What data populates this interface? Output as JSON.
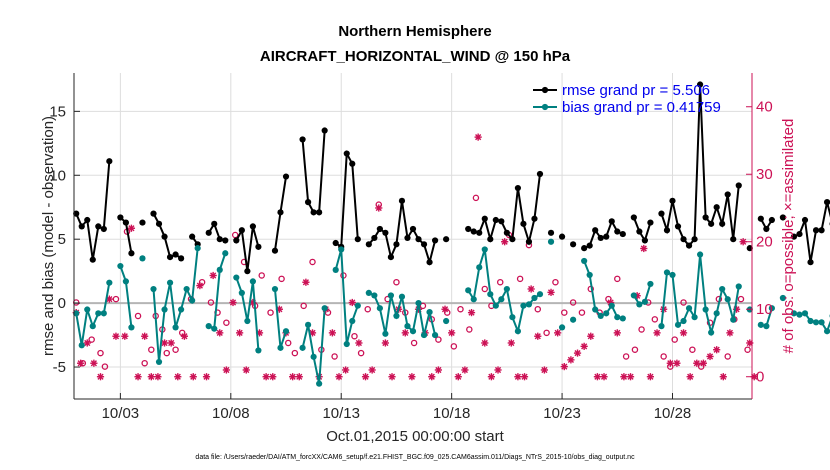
{
  "chart_data": {
    "type": "line",
    "title": "Northern Hemisphere",
    "subtitle": "AIRCRAFT_HORIZONTAL_WIND @ 150 hPa",
    "xlabel": "Oct.01,2015 00:00:00 start",
    "ylabel": "rmse and bias (model - observation)",
    "y2label": "# of obs: o=possible; ×=assimilated",
    "footnote": "data file: /Users/raeder/DAI/ATM_forcXX/CAM6_setup/f.e21.FHIST_BGC.f09_025.CAM6assim.011/Diags_NTrS_2015-10/obs_diag_output.nc",
    "xlim": [
      0.9,
      31.6
    ],
    "ylim": [
      -7.5,
      18
    ],
    "y2lim": [
      -3.3,
      45
    ],
    "x_ticks": [
      3,
      8,
      13,
      18,
      23,
      28
    ],
    "x_tick_labels": [
      "10/03",
      "10/08",
      "10/13",
      "10/18",
      "10/23",
      "10/28"
    ],
    "y_ticks": [
      -5,
      0,
      5,
      10,
      15
    ],
    "y_tick_labels": [
      "-5",
      "0",
      "5",
      "10",
      "15"
    ],
    "y2_ticks": [
      0,
      10,
      20,
      30,
      40
    ],
    "y2_tick_labels": [
      "0",
      "10",
      "20",
      "30",
      "40"
    ],
    "legend_position": "top-right",
    "series": [
      {
        "name": "rmse grand pr = 5.506",
        "color": "#000000",
        "values": [
          7.0,
          6.0,
          6.5,
          3.4,
          6.0,
          5.8,
          11.1,
          null,
          6.7,
          6.3,
          3.9,
          null,
          6.3,
          null,
          7.0,
          6.2,
          5.2,
          3.6,
          3.8,
          3.5,
          null,
          5.2,
          4.6,
          null,
          5.5,
          6.2,
          5.0,
          4.9,
          null,
          4.9,
          5.7,
          2.5,
          6.0,
          4.4,
          null,
          null,
          4.1,
          7.1,
          9.9,
          null,
          null,
          12.8,
          7.9,
          7.1,
          7.1,
          13.5,
          null,
          4.7,
          4.4,
          11.7,
          10.9,
          5.0,
          null,
          4.6,
          5.1,
          5.8,
          5.5,
          3.6,
          4.6,
          8.0,
          5.1,
          5.8,
          5.0,
          4.6,
          3.2,
          4.9,
          null,
          5.0,
          null,
          null,
          null,
          5.8,
          5.6,
          5.5,
          6.6,
          5.0,
          6.5,
          6.4,
          5.5,
          5.0,
          9.0,
          6.2,
          4.8,
          6.6,
          10.1,
          null,
          5.5,
          null,
          5.2,
          null,
          4.6,
          null,
          4.3,
          4.5,
          5.7,
          5.1,
          5.2,
          6.4,
          5.6,
          5.4,
          null,
          6.7,
          5.6,
          4.9,
          6.3,
          null,
          7.0,
          5.7,
          8.0,
          6.0,
          5.0,
          4.5,
          5.0,
          17.1,
          6.7,
          6.2,
          7.5,
          6.2,
          8.5,
          5.0,
          9.2,
          null,
          4.3,
          null,
          6.6,
          5.8,
          6.5,
          null,
          6.7,
          null,
          5.2,
          5.4,
          6.5,
          3.2,
          5.7,
          5.7,
          7.9,
          6.2,
          4.0
        ],
        "x_start": 1.0,
        "x_step": 0.25
      },
      {
        "name": "bias grand pr = 0.41759",
        "color": "#008080",
        "values": [
          -0.8,
          -3.3,
          -0.5,
          -1.8,
          -0.8,
          -0.8,
          1.6,
          null,
          2.9,
          1.7,
          -1.9,
          null,
          3.5,
          null,
          1.1,
          -4.6,
          -0.5,
          1.6,
          -1.9,
          -0.5,
          1.1,
          0.2,
          4.3,
          null,
          -1.8,
          -2.0,
          2.6,
          3.9,
          null,
          2.0,
          0.8,
          -1.4,
          1.7,
          -3.7,
          null,
          null,
          1.1,
          -3.5,
          -2.2,
          null,
          null,
          -3.5,
          -1.7,
          -4.2,
          -6.3,
          -0.4,
          null,
          2.6,
          4.2,
          -3.2,
          -1.4,
          -0.2,
          null,
          0.8,
          0.6,
          -0.4,
          -2.4,
          0.6,
          -1.0,
          0.5,
          -1.8,
          -2.2,
          0.0,
          -2.5,
          -0.7,
          -2.5,
          null,
          -1.4,
          null,
          null,
          null,
          1.0,
          0.3,
          2.8,
          4.2,
          0.7,
          -0.2,
          0.3,
          1.1,
          -1.1,
          -2.2,
          -0.2,
          -0.1,
          0.4,
          0.7,
          null,
          4.8,
          null,
          -1.9,
          null,
          -1.3,
          null,
          3.3,
          2.2,
          -0.5,
          -1.0,
          -0.8,
          -0.2,
          -1.1,
          -1.2,
          null,
          0.6,
          -0.1,
          0.1,
          1.5,
          null,
          -1.8,
          2.4,
          2.2,
          -1.7,
          -1.4,
          -0.4,
          -1.1,
          3.8,
          -0.5,
          -2.3,
          -0.8,
          1.1,
          0.3,
          -1.3,
          1.3,
          null,
          -0.5,
          null,
          -1.7,
          -1.8,
          -0.4,
          null,
          0.4,
          null,
          -0.8,
          -0.9,
          -0.8,
          -1.4,
          -1.5,
          -1.5,
          -2.2,
          -1.0,
          -0.9
        ],
        "x_start": 1.0,
        "x_step": 0.25
      },
      {
        "name": "# of obs possible (o)",
        "axis": "right",
        "color": "#cc1155",
        "marker": "circle",
        "points": [
          [
            1.0,
            11.0
          ],
          [
            1.3,
            2.0
          ],
          [
            1.7,
            5.5
          ],
          [
            2.1,
            3.5
          ],
          [
            2.3,
            1.5
          ],
          [
            2.8,
            11.5
          ],
          [
            3.3,
            21.5
          ],
          [
            3.8,
            9.0
          ],
          [
            4.1,
            2.0
          ],
          [
            4.4,
            4.0
          ],
          [
            4.6,
            9.0
          ],
          [
            4.9,
            7.0
          ],
          [
            5.1,
            3.5
          ],
          [
            5.5,
            4.0
          ],
          [
            5.8,
            6.5
          ],
          [
            6.2,
            11.5
          ],
          [
            6.7,
            14.0
          ],
          [
            7.1,
            11.0
          ],
          [
            7.4,
            9.5
          ],
          [
            7.8,
            8.0
          ],
          [
            8.2,
            21.0
          ],
          [
            8.6,
            17.0
          ],
          [
            9.1,
            10.5
          ],
          [
            9.4,
            15.0
          ],
          [
            9.8,
            9.5
          ],
          [
            10.3,
            14.5
          ],
          [
            10.6,
            5.0
          ],
          [
            10.9,
            3.5
          ],
          [
            11.3,
            10.5
          ],
          [
            11.7,
            17.0
          ],
          [
            12.1,
            4.0
          ],
          [
            12.4,
            9.5
          ],
          [
            12.7,
            3.0
          ],
          [
            13.1,
            15.0
          ],
          [
            13.6,
            6.0
          ],
          [
            13.9,
            3.5
          ],
          [
            14.2,
            10.0
          ],
          [
            14.7,
            25.5
          ],
          [
            15.1,
            11.5
          ],
          [
            15.5,
            14.0
          ],
          [
            15.9,
            9.5
          ],
          [
            16.3,
            5.0
          ],
          [
            16.7,
            10.5
          ],
          [
            17.1,
            8.5
          ],
          [
            17.4,
            5.5
          ],
          [
            17.8,
            9.5
          ],
          [
            18.1,
            4.5
          ],
          [
            18.4,
            10.0
          ],
          [
            18.8,
            7.0
          ],
          [
            19.1,
            26.5
          ],
          [
            19.5,
            13.0
          ],
          [
            19.8,
            10.5
          ],
          [
            20.2,
            14.0
          ],
          [
            20.6,
            21.0
          ],
          [
            21.1,
            14.5
          ],
          [
            21.5,
            19.5
          ],
          [
            21.9,
            10.0
          ],
          [
            22.3,
            6.5
          ],
          [
            22.7,
            14.0
          ],
          [
            23.1,
            9.5
          ],
          [
            23.5,
            11.0
          ],
          [
            23.9,
            9.5
          ],
          [
            24.3,
            13.0
          ],
          [
            24.7,
            9.5
          ],
          [
            25.1,
            11.5
          ],
          [
            25.5,
            14.5
          ],
          [
            25.9,
            3.0
          ],
          [
            26.3,
            4.0
          ],
          [
            26.6,
            7.0
          ],
          [
            26.9,
            11.0
          ],
          [
            27.2,
            8.5
          ],
          [
            27.6,
            3.0
          ],
          [
            27.9,
            1.5
          ],
          [
            28.1,
            5.5
          ],
          [
            28.5,
            11.0
          ],
          [
            28.9,
            4.0
          ],
          [
            29.3,
            1.5
          ],
          [
            29.7,
            8.0
          ],
          [
            30.1,
            11.5
          ],
          [
            30.5,
            3.0
          ],
          [
            30.8,
            8.5
          ],
          [
            31.1,
            11.5
          ],
          [
            31.4,
            4.0
          ]
        ]
      },
      {
        "name": "# of obs assimilated (×)",
        "axis": "right",
        "color": "#cc1155",
        "marker": "asterisk",
        "points": [
          [
            1.0,
            9.5
          ],
          [
            1.2,
            2.0
          ],
          [
            1.5,
            5.0
          ],
          [
            1.8,
            2.0
          ],
          [
            2.1,
            0.0
          ],
          [
            2.5,
            11.5
          ],
          [
            2.8,
            6.0
          ],
          [
            3.2,
            6.0
          ],
          [
            3.5,
            22.0
          ],
          [
            3.8,
            0.0
          ],
          [
            4.1,
            6.0
          ],
          [
            4.4,
            0.0
          ],
          [
            4.7,
            0.0
          ],
          [
            5.0,
            5.0
          ],
          [
            5.3,
            5.0
          ],
          [
            5.6,
            0.0
          ],
          [
            5.9,
            6.0
          ],
          [
            6.3,
            0.0
          ],
          [
            6.6,
            13.5
          ],
          [
            6.9,
            0.0
          ],
          [
            7.2,
            15.0
          ],
          [
            7.5,
            6.5
          ],
          [
            7.8,
            1.0
          ],
          [
            8.1,
            11.0
          ],
          [
            8.4,
            6.5
          ],
          [
            8.7,
            1.0
          ],
          [
            9.0,
            11.0
          ],
          [
            9.3,
            6.5
          ],
          [
            9.6,
            0.0
          ],
          [
            9.9,
            0.0
          ],
          [
            10.2,
            10.0
          ],
          [
            10.5,
            6.5
          ],
          [
            10.8,
            0.0
          ],
          [
            11.1,
            0.0
          ],
          [
            11.4,
            14.0
          ],
          [
            11.7,
            6.5
          ],
          [
            12.0,
            0.0
          ],
          [
            12.3,
            10.0
          ],
          [
            12.6,
            6.5
          ],
          [
            12.9,
            0.0
          ],
          [
            13.2,
            1.0
          ],
          [
            13.5,
            11.0
          ],
          [
            13.8,
            5.0
          ],
          [
            14.1,
            0.0
          ],
          [
            14.4,
            1.0
          ],
          [
            14.7,
            25.0
          ],
          [
            15.0,
            5.0
          ],
          [
            15.3,
            0.0
          ],
          [
            15.6,
            10.0
          ],
          [
            15.9,
            6.5
          ],
          [
            16.2,
            0.0
          ],
          [
            16.5,
            10.0
          ],
          [
            16.8,
            6.5
          ],
          [
            17.1,
            0.0
          ],
          [
            17.4,
            1.0
          ],
          [
            17.7,
            10.0
          ],
          [
            18.0,
            6.5
          ],
          [
            18.3,
            0.0
          ],
          [
            18.6,
            1.0
          ],
          [
            18.9,
            9.5
          ],
          [
            19.2,
            35.5
          ],
          [
            19.5,
            5.0
          ],
          [
            19.8,
            0.0
          ],
          [
            20.1,
            1.0
          ],
          [
            20.4,
            20.0
          ],
          [
            20.7,
            5.0
          ],
          [
            21.0,
            0.0
          ],
          [
            21.3,
            0.0
          ],
          [
            21.6,
            13.0
          ],
          [
            21.9,
            6.0
          ],
          [
            22.2,
            1.0
          ],
          [
            22.5,
            12.5
          ],
          [
            22.8,
            6.5
          ],
          [
            23.1,
            1.5
          ],
          [
            23.4,
            2.5
          ],
          [
            23.7,
            3.5
          ],
          [
            24.0,
            4.5
          ],
          [
            24.3,
            6.0
          ],
          [
            24.6,
            0.0
          ],
          [
            24.9,
            0.0
          ],
          [
            25.2,
            11.0
          ],
          [
            25.5,
            6.5
          ],
          [
            25.8,
            0.0
          ],
          [
            26.1,
            0.0
          ],
          [
            26.4,
            12.0
          ],
          [
            26.7,
            19.0
          ],
          [
            27.0,
            0.0
          ],
          [
            27.3,
            6.5
          ],
          [
            27.6,
            10.0
          ],
          [
            27.9,
            2.0
          ],
          [
            28.2,
            2.0
          ],
          [
            28.5,
            6.5
          ],
          [
            28.8,
            0.0
          ],
          [
            29.1,
            2.0
          ],
          [
            29.4,
            2.0
          ],
          [
            29.7,
            3.0
          ],
          [
            30.0,
            4.0
          ],
          [
            30.3,
            0.0
          ],
          [
            30.6,
            6.5
          ],
          [
            30.9,
            10.0
          ],
          [
            31.2,
            20.0
          ],
          [
            31.5,
            5.0
          ],
          [
            31.7,
            0.0
          ]
        ]
      }
    ]
  }
}
